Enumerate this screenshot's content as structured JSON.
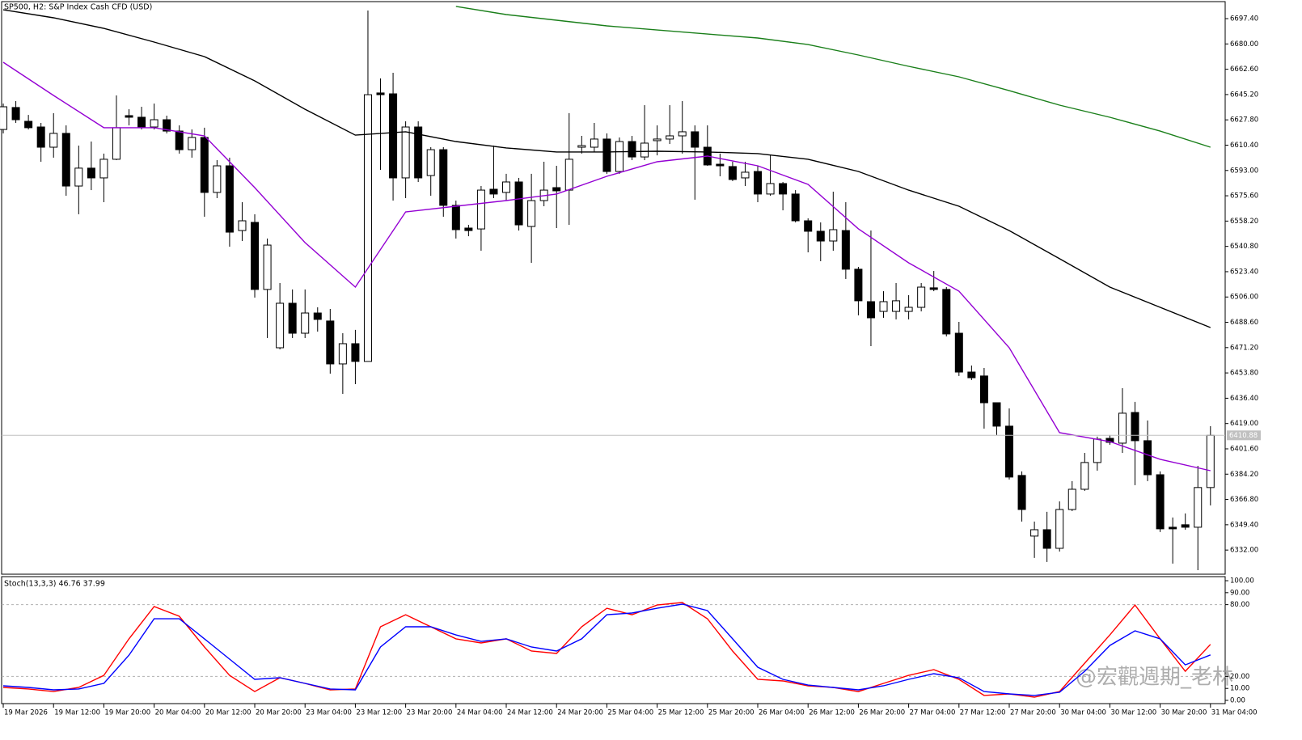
{
  "chart_data": [
    {
      "type": "candlestick",
      "title": "SP500, H2:  S&P Index Cash CFD (USD)",
      "up_color": "#ffffff",
      "down_color": "#000000",
      "outline": "#000000",
      "x": [
        0,
        1,
        2,
        3,
        4,
        5,
        6,
        7,
        8,
        9,
        10,
        11,
        12,
        13,
        14,
        15,
        16,
        17,
        18,
        19,
        20,
        21,
        22,
        23,
        24,
        25,
        26,
        27,
        28,
        29,
        30,
        31,
        32,
        33,
        34,
        35,
        36,
        37,
        38,
        39,
        40,
        41,
        42,
        43,
        44,
        45,
        46,
        47,
        48,
        49,
        50,
        51,
        52,
        53,
        54,
        55,
        56,
        57,
        58,
        59,
        60,
        61,
        62,
        63,
        64,
        65,
        66,
        67,
        68,
        69,
        70,
        71,
        72,
        73,
        74,
        75,
        76,
        77,
        78,
        79,
        80,
        81,
        82,
        83,
        84,
        85,
        86,
        87,
        88,
        89,
        90,
        91,
        92,
        93,
        94,
        95,
        96
      ],
      "open": [
        6621.2,
        6636.3,
        6626.8,
        6622.9,
        6609.0,
        6618.5,
        6582.3,
        6594.6,
        6587.9,
        6600.7,
        6630.7,
        6629.6,
        6622.9,
        6627.9,
        6620.1,
        6607.3,
        6615.7,
        6577.9,
        6596.2,
        6551.7,
        6557.3,
        6511.2,
        6471.1,
        6501.7,
        6481.1,
        6495.0,
        6489.5,
        6460.0,
        6473.9,
        6461.7,
        6646.3,
        6645.7,
        6587.9,
        6622.9,
        6589.5,
        6607.3,
        6569.0,
        6553.4,
        6552.8,
        6580.1,
        6577.9,
        6585.1,
        6554.5,
        6572.3,
        6581.2,
        6579.5,
        6609.0,
        6609.0,
        6614.6,
        6592.3,
        6612.9,
        6602.3,
        6613.5,
        6614.6,
        6616.8,
        6619.6,
        6609.0,
        6597.3,
        6595.7,
        6587.9,
        6592.3,
        6576.8,
        6584.0,
        6576.8,
        6558.4,
        6551.2,
        6544.5,
        6551.7,
        6525.1,
        6502.8,
        6496.1,
        6496.1,
        6496.1,
        6498.9,
        6512.3,
        6511.2,
        6481.1,
        6454.4,
        6451.7,
        6433.3,
        6417.2,
        6383.3,
        6341.6,
        6346.0,
        6333.2,
        6359.9,
        6373.8,
        6392.2,
        6408.8,
        6405.5,
        6426.6,
        6407.2,
        6383.8,
        6347.7,
        6349.4,
        6347.7,
        6375.0
      ],
      "high": [
        6639.0,
        6640.7,
        6631.2,
        6625.7,
        6632.4,
        6624.0,
        6610.1,
        6612.9,
        6604.6,
        6644.6,
        6635.1,
        6636.8,
        6639.0,
        6630.7,
        6624.0,
        6621.2,
        6622.4,
        6600.1,
        6601.8,
        6571.2,
        6562.9,
        6546.2,
        6515.6,
        6511.2,
        6511.2,
        6498.9,
        6497.8,
        6481.1,
        6483.4,
        6703.0,
        6656.3,
        6660.2,
        6626.8,
        6626.8,
        6609.0,
        6609.0,
        6572.3,
        6555.6,
        6582.3,
        6610.1,
        6590.7,
        6587.9,
        6590.7,
        6599.0,
        6596.2,
        6632.4,
        6616.8,
        6625.7,
        6618.5,
        6615.7,
        6616.8,
        6637.9,
        6624.0,
        6637.9,
        6640.7,
        6624.0,
        6624.0,
        6604.6,
        6599.0,
        6599.0,
        6596.2,
        6603.4,
        6585.1,
        6579.5,
        6560.1,
        6557.3,
        6578.4,
        6571.2,
        6526.7,
        6551.7,
        6510.0,
        6515.6,
        6507.3,
        6515.6,
        6523.9,
        6512.8,
        6488.9,
        6458.9,
        6457.2,
        6433.3,
        6429.4,
        6386.1,
        6351.6,
        6358.3,
        6365.5,
        6379.4,
        6398.8,
        6410.0,
        6411.1,
        6443.3,
        6433.9,
        6421.1,
        6386.1,
        6354.4,
        6357.2,
        6389.9,
        6417.2
      ],
      "low": [
        6618.5,
        6625.7,
        6621.2,
        6599.0,
        6601.8,
        6575.6,
        6562.9,
        6579.5,
        6571.2,
        6600.1,
        6624.0,
        6621.2,
        6621.2,
        6618.5,
        6604.6,
        6601.8,
        6561.2,
        6574.0,
        6540.6,
        6544.5,
        6505.6,
        6477.8,
        6470.0,
        6477.8,
        6477.8,
        6482.2,
        6453.3,
        6439.4,
        6446.1,
        6461.7,
        6593.4,
        6572.3,
        6574.0,
        6585.1,
        6575.6,
        6561.2,
        6546.2,
        6547.8,
        6537.8,
        6574.0,
        6572.3,
        6551.7,
        6529.5,
        6568.4,
        6553.4,
        6555.6,
        6604.6,
        6605.7,
        6590.7,
        6590.7,
        6600.1,
        6600.1,
        6603.4,
        6611.2,
        6604.6,
        6572.9,
        6596.2,
        6589.0,
        6585.7,
        6582.3,
        6571.2,
        6575.6,
        6565.6,
        6557.3,
        6536.7,
        6530.6,
        6537.8,
        6518.4,
        6493.4,
        6472.2,
        6491.7,
        6490.6,
        6490.6,
        6496.1,
        6510.0,
        6478.9,
        6451.7,
        6448.9,
        6415.5,
        6411.1,
        6380.5,
        6351.6,
        6326.6,
        6323.8,
        6331.0,
        6358.8,
        6372.7,
        6386.6,
        6404.4,
        6398.8,
        6376.6,
        6379.4,
        6344.4,
        6322.7,
        6346.0,
        6318.2,
        6362.7
      ],
      "close": [
        6636.8,
        6627.9,
        6622.4,
        6609.0,
        6618.5,
        6582.3,
        6594.6,
        6587.9,
        6600.7,
        6622.4,
        6629.6,
        6622.9,
        6627.9,
        6620.1,
        6607.3,
        6615.7,
        6577.9,
        6596.2,
        6550.6,
        6558.4,
        6511.2,
        6541.7,
        6501.7,
        6481.1,
        6495.0,
        6490.6,
        6460.0,
        6473.9,
        6461.7,
        6645.1,
        6645.1,
        6587.9,
        6622.9,
        6587.9,
        6607.3,
        6569.0,
        6552.3,
        6551.7,
        6579.5,
        6576.8,
        6585.1,
        6555.6,
        6572.3,
        6579.5,
        6579.0,
        6600.7,
        6610.1,
        6614.6,
        6592.3,
        6612.9,
        6602.3,
        6611.8,
        6614.6,
        6616.8,
        6619.6,
        6609.0,
        6596.8,
        6596.2,
        6586.8,
        6591.8,
        6576.8,
        6584.0,
        6576.8,
        6558.4,
        6551.2,
        6544.5,
        6552.3,
        6525.1,
        6503.4,
        6491.7,
        6502.8,
        6503.4,
        6498.9,
        6512.8,
        6511.2,
        6480.6,
        6454.4,
        6450.5,
        6433.3,
        6417.2,
        6382.2,
        6359.9,
        6346.0,
        6333.2,
        6359.9,
        6373.8,
        6392.2,
        6408.3,
        6406.1,
        6426.1,
        6407.2,
        6383.8,
        6346.6,
        6346.6,
        6347.7,
        6375.0,
        6410.88
      ],
      "series": [
        {
          "color": "#9400d3",
          "x": [
            0,
            4,
            8,
            12,
            16,
            20,
            24,
            28,
            32,
            36,
            40,
            44,
            48,
            52,
            56,
            60,
            64,
            68,
            72,
            76,
            80,
            84,
            88,
            92,
            96
          ],
          "values": [
            6667.4,
            6644.6,
            6622.4,
            6622.4,
            6616.8,
            6581.2,
            6543.4,
            6512.8,
            6564.5,
            6568.4,
            6572.3,
            6576.8,
            6589.0,
            6599.0,
            6602.9,
            6596.2,
            6583.4,
            6552.9,
            6529.5,
            6510.0,
            6471.1,
            6412.7,
            6406.6,
            6394.4,
            6386.6
          ]
        },
        {
          "color": "#000000",
          "x": [
            0,
            4,
            8,
            12,
            16,
            20,
            24,
            28,
            32,
            36,
            40,
            44,
            48,
            52,
            56,
            60,
            64,
            68,
            72,
            76,
            80,
            84,
            88,
            92,
            96
          ],
          "values": [
            6703.5,
            6698.0,
            6690.7,
            6681.3,
            6671.3,
            6654.6,
            6635.1,
            6617.3,
            6619.6,
            6612.9,
            6608.5,
            6605.7,
            6605.7,
            6606.2,
            6605.7,
            6604.6,
            6600.7,
            6592.3,
            6579.5,
            6568.4,
            6551.7,
            6532.3,
            6512.8,
            6498.9,
            6485.0
          ]
        },
        {
          "color": "#1a7f1a",
          "x": [
            36,
            40,
            44,
            48,
            52,
            56,
            60,
            64,
            68,
            72,
            76,
            80,
            84,
            88,
            92,
            96
          ],
          "values": [
            6705.8,
            6700.2,
            6696.3,
            6692.4,
            6689.6,
            6686.8,
            6684.1,
            6679.6,
            6672.4,
            6664.6,
            6657.4,
            6647.9,
            6637.9,
            6629.6,
            6620.1,
            6609.0
          ]
        }
      ],
      "last_price": {
        "value": 6410.88,
        "label": "6410.88"
      },
      "xlim": [
        -0.13,
        97.17
      ],
      "ylim": [
        6315.4,
        6709.1
      ],
      "yticks": [
        {
          "value": 6697.4,
          "label": "6697.40"
        },
        {
          "value": 6680,
          "label": "6680.00"
        },
        {
          "value": 6662.6,
          "label": "6662.60"
        },
        {
          "value": 6645.2,
          "label": "6645.20"
        },
        {
          "value": 6627.8,
          "label": "6627.80"
        },
        {
          "value": 6610.4,
          "label": "6610.40"
        },
        {
          "value": 6593,
          "label": "6593.00"
        },
        {
          "value": 6575.6,
          "label": "6575.60"
        },
        {
          "value": 6558.2,
          "label": "6558.20"
        },
        {
          "value": 6540.8,
          "label": "6540.80"
        },
        {
          "value": 6523.4,
          "label": "6523.40"
        },
        {
          "value": 6506,
          "label": "6506.00"
        },
        {
          "value": 6488.6,
          "label": "6488.60"
        },
        {
          "value": 6471.2,
          "label": "6471.20"
        },
        {
          "value": 6453.8,
          "label": "6453.80"
        },
        {
          "value": 6436.4,
          "label": "6436.40"
        },
        {
          "value": 6419,
          "label": "6419.00"
        },
        {
          "value": 6401.6,
          "label": "6401.60"
        },
        {
          "value": 6384.2,
          "label": "6384.20"
        },
        {
          "value": 6366.8,
          "label": "6366.80"
        },
        {
          "value": 6349.4,
          "label": "6349.40"
        },
        {
          "value": 6332,
          "label": "6332.00"
        }
      ],
      "grid": false
    },
    {
      "type": "line",
      "title": "Stoch(13,3,3) 46.76 37.99",
      "series": [
        {
          "color": "#ff0000",
          "x": [
            0,
            2,
            4,
            6,
            8,
            10,
            12,
            14,
            16,
            18,
            20,
            22,
            24,
            26,
            28,
            30,
            32,
            34,
            36,
            38,
            40,
            42,
            44,
            46,
            48,
            50,
            52,
            54,
            56,
            58,
            60,
            62,
            64,
            66,
            68,
            70,
            72,
            74,
            76,
            78,
            80,
            82,
            84,
            86,
            88,
            90,
            92,
            94,
            96
          ],
          "values": [
            10.8,
            9.5,
            7.4,
            10.8,
            20.9,
            51.4,
            78.4,
            70.3,
            44.6,
            20.9,
            7.4,
            18.9,
            14.2,
            8.8,
            9.5,
            61.5,
            71.6,
            61.5,
            51.4,
            48.0,
            51.4,
            41.2,
            39.2,
            61.5,
            77.0,
            71.6,
            79.7,
            81.8,
            68.2,
            41.2,
            17.6,
            16.2,
            12.2,
            10.8,
            7.4,
            14.2,
            20.9,
            25.7,
            17.6,
            4.1,
            5.4,
            2.7,
            7.4,
            31.1,
            54.7,
            79.7,
            51.4,
            24.3,
            46.76
          ]
        },
        {
          "color": "#0000ff",
          "x": [
            0,
            2,
            4,
            6,
            8,
            10,
            12,
            14,
            16,
            18,
            20,
            22,
            24,
            26,
            28,
            30,
            32,
            34,
            36,
            38,
            40,
            42,
            44,
            46,
            48,
            50,
            52,
            54,
            56,
            58,
            60,
            62,
            64,
            66,
            68,
            70,
            72,
            74,
            76,
            78,
            80,
            82,
            84,
            86,
            88,
            90,
            92,
            94,
            96
          ],
          "values": [
            12.2,
            10.8,
            8.8,
            9.5,
            14.2,
            37.8,
            68.2,
            68.2,
            51.4,
            34.5,
            17.6,
            18.9,
            14.2,
            9.5,
            8.8,
            44.6,
            61.5,
            61.5,
            54.7,
            49.3,
            51.4,
            44.6,
            41.2,
            51.4,
            71.6,
            73.0,
            77.0,
            80.4,
            75.0,
            51.4,
            27.7,
            17.6,
            12.8,
            10.8,
            8.8,
            12.2,
            17.6,
            22.3,
            18.9,
            7.4,
            5.4,
            4.1,
            6.8,
            24.3,
            45.9,
            58.1,
            51.4,
            29.7,
            37.99
          ]
        }
      ],
      "levels": [
        80,
        20
      ],
      "xlim": [
        -0.13,
        97.17
      ],
      "ylim": [
        -2.7,
        103.4
      ],
      "yticks": [
        {
          "value": 100,
          "label": "100.00"
        },
        {
          "value": 90,
          "label": "90.00"
        },
        {
          "value": 80,
          "label": "80.00"
        },
        {
          "value": 20,
          "label": "20.00"
        },
        {
          "value": 10,
          "label": "10.00"
        },
        {
          "value": 0,
          "label": "0.00"
        }
      ],
      "xticks": [
        {
          "value": 0,
          "label": "19 Mar 2026"
        },
        {
          "value": 4,
          "label": "19 Mar 12:00"
        },
        {
          "value": 8,
          "label": "19 Mar 20:00"
        },
        {
          "value": 12,
          "label": "20 Mar 04:00"
        },
        {
          "value": 16,
          "label": "20 Mar 12:00"
        },
        {
          "value": 20,
          "label": "20 Mar 20:00"
        },
        {
          "value": 24,
          "label": "23 Mar 04:00"
        },
        {
          "value": 28,
          "label": "23 Mar 12:00"
        },
        {
          "value": 32,
          "label": "23 Mar 20:00"
        },
        {
          "value": 36,
          "label": "24 Mar 04:00"
        },
        {
          "value": 40,
          "label": "24 Mar 12:00"
        },
        {
          "value": 44,
          "label": "24 Mar 20:00"
        },
        {
          "value": 48,
          "label": "25 Mar 04:00"
        },
        {
          "value": 52,
          "label": "25 Mar 12:00"
        },
        {
          "value": 56,
          "label": "25 Mar 20:00"
        },
        {
          "value": 60,
          "label": "26 Mar 04:00"
        },
        {
          "value": 64,
          "label": "26 Mar 12:00"
        },
        {
          "value": 68,
          "label": "26 Mar 20:00"
        },
        {
          "value": 72,
          "label": "27 Mar 04:00"
        },
        {
          "value": 76,
          "label": "27 Mar 12:00"
        },
        {
          "value": 80,
          "label": "27 Mar 20:00"
        },
        {
          "value": 84,
          "label": "30 Mar 04:00"
        },
        {
          "value": 88,
          "label": "30 Mar 12:00"
        },
        {
          "value": 92,
          "label": "30 Mar 20:00"
        },
        {
          "value": 96,
          "label": "31 Mar 04:00"
        }
      ],
      "watermark": "@宏觀週期_老林"
    }
  ]
}
